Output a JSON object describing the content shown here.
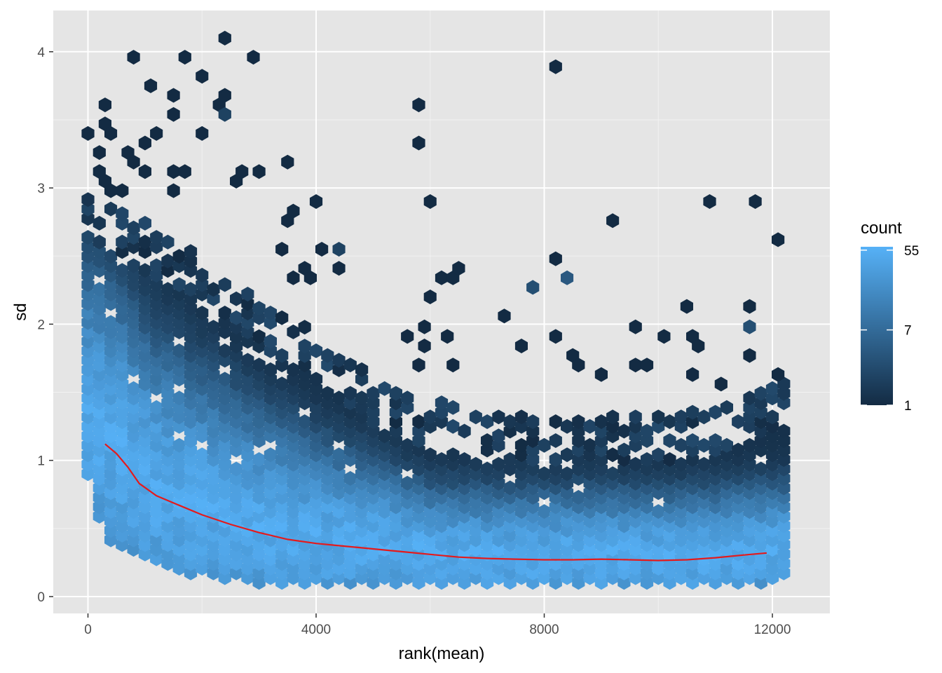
{
  "chart_data": {
    "type": "hexbin",
    "xlabel": "rank(mean)",
    "ylabel": "sd",
    "xlim": [
      -750,
      12750
    ],
    "ylim": [
      -0.13,
      4.3
    ],
    "x_ticks": [
      0,
      4000,
      8000,
      12000
    ],
    "x_tick_labels": [
      "0",
      "4000",
      "8000",
      "12000"
    ],
    "y_ticks": [
      0,
      1,
      2,
      3,
      4
    ],
    "y_tick_labels": [
      "0",
      "1",
      "2",
      "3",
      "4"
    ],
    "grid": true,
    "background": "#e5e5e5",
    "legend": {
      "title": "count",
      "placement": "right",
      "scale": "log",
      "labels": [
        "55",
        "7",
        "1"
      ],
      "values": [
        55,
        7,
        1
      ],
      "color_low": "#132b43",
      "color_high": "#56b1f7"
    },
    "hex_bins": [
      [
        0,
        3.4,
        1
      ],
      [
        200,
        3.26,
        1
      ],
      [
        300,
        3.61,
        1
      ],
      [
        300,
        3.47,
        1
      ],
      [
        400,
        3.4,
        1
      ],
      [
        800,
        3.96,
        1
      ],
      [
        700,
        3.26,
        1
      ],
      [
        1100,
        3.75,
        1
      ],
      [
        1000,
        3.33,
        1
      ],
      [
        1200,
        3.4,
        1
      ],
      [
        1500,
        3.68,
        1
      ],
      [
        1500,
        3.54,
        1
      ],
      [
        1700,
        3.96,
        1
      ],
      [
        2000,
        3.82,
        1
      ],
      [
        2000,
        3.4,
        1
      ],
      [
        2400,
        4.1,
        1
      ],
      [
        2300,
        3.61,
        1
      ],
      [
        2400,
        3.68,
        1
      ],
      [
        2400,
        3.54,
        2
      ],
      [
        2900,
        3.96,
        1
      ],
      [
        800,
        3.19,
        1
      ],
      [
        1000,
        3.12,
        1
      ],
      [
        1500,
        3.12,
        1
      ],
      [
        1700,
        3.12,
        1
      ],
      [
        2600,
        3.05,
        1
      ],
      [
        2700,
        3.12,
        1
      ],
      [
        3000,
        3.12,
        1
      ],
      [
        3500,
        3.19,
        1
      ],
      [
        200,
        3.12,
        1
      ],
      [
        300,
        3.05,
        1
      ],
      [
        400,
        2.98,
        1
      ],
      [
        600,
        2.98,
        1
      ],
      [
        1500,
        2.98,
        1
      ],
      [
        5800,
        3.61,
        1
      ],
      [
        5800,
        3.33,
        1
      ],
      [
        8200,
        3.89,
        1
      ],
      [
        3500,
        2.76,
        1
      ],
      [
        3600,
        2.83,
        1
      ],
      [
        4000,
        2.9,
        1
      ],
      [
        6000,
        2.9,
        1
      ],
      [
        9200,
        2.76,
        1
      ],
      [
        10900,
        2.9,
        1
      ],
      [
        11700,
        2.9,
        1
      ],
      [
        12100,
        2.62,
        1
      ],
      [
        4100,
        2.55,
        1
      ],
      [
        4400,
        2.55,
        2
      ],
      [
        4400,
        2.41,
        1
      ],
      [
        3400,
        2.55,
        1
      ],
      [
        3800,
        2.41,
        1
      ],
      [
        3600,
        2.34,
        1
      ],
      [
        3900,
        2.34,
        1
      ],
      [
        6200,
        2.34,
        1
      ],
      [
        6400,
        2.34,
        1
      ],
      [
        6500,
        2.41,
        1
      ],
      [
        6000,
        2.2,
        1
      ],
      [
        7800,
        2.27,
        3
      ],
      [
        8200,
        2.48,
        1
      ],
      [
        8400,
        2.34,
        4
      ],
      [
        7300,
        2.06,
        1
      ],
      [
        10500,
        2.13,
        1
      ],
      [
        11600,
        2.13,
        1
      ],
      [
        11600,
        1.98,
        3
      ],
      [
        9600,
        1.98,
        1
      ],
      [
        10100,
        1.91,
        1
      ],
      [
        10600,
        1.91,
        1
      ],
      [
        10700,
        1.84,
        1
      ],
      [
        5600,
        1.91,
        1
      ],
      [
        5900,
        1.98,
        1
      ],
      [
        6300,
        1.91,
        1
      ],
      [
        5900,
        1.84,
        1
      ],
      [
        7600,
        1.84,
        1
      ],
      [
        8200,
        1.91,
        1
      ],
      [
        8500,
        1.77,
        1
      ],
      [
        8600,
        1.7,
        1
      ],
      [
        5800,
        1.7,
        1
      ],
      [
        6400,
        1.7,
        1
      ],
      [
        9000,
        1.63,
        1
      ],
      [
        9600,
        1.7,
        1
      ],
      [
        9800,
        1.7,
        1
      ],
      [
        10600,
        1.63,
        1
      ],
      [
        11100,
        1.56,
        1
      ],
      [
        11600,
        1.77,
        1
      ],
      [
        12100,
        1.63,
        1
      ]
    ],
    "hex_density": {
      "columns_x_start": 0,
      "columns_x_step": 200,
      "columns_x_end": 12200,
      "y_step": 0.0694,
      "description": "dense band of bins between sd 0.1 and the upper envelope, brightest near the trend curve"
    },
    "upper_envelope": {
      "x": [
        0,
        500,
        1000,
        1500,
        2000,
        2500,
        3000,
        3500,
        4000,
        4500,
        5000,
        5500,
        6000,
        6500,
        7000,
        7500,
        8000,
        8500,
        9000,
        9500,
        10000,
        10500,
        11000,
        11500,
        12100
      ],
      "y": [
        2.95,
        2.85,
        2.75,
        2.6,
        2.5,
        2.35,
        2.2,
        2.05,
        1.95,
        1.8,
        1.6,
        1.5,
        1.45,
        1.4,
        1.35,
        1.35,
        1.3,
        1.3,
        1.3,
        1.35,
        1.35,
        1.35,
        1.4,
        1.45,
        1.6
      ]
    },
    "lower_envelope": {
      "x": [
        0,
        300,
        800,
        1500,
        2000,
        3000,
        4000,
        5000,
        6000,
        7000,
        8000,
        9000,
        10000,
        11000,
        12000,
        12300
      ],
      "y": [
        0.9,
        0.42,
        0.3,
        0.2,
        0.14,
        0.1,
        0.08,
        0.07,
        0.07,
        0.07,
        0.07,
        0.07,
        0.07,
        0.07,
        0.07,
        0.2
      ]
    },
    "trend_line": {
      "name": "",
      "color": "#e41a1c",
      "x": [
        300,
        500,
        700,
        900,
        1200,
        1600,
        2000,
        2500,
        3000,
        3500,
        4000,
        4500,
        5000,
        5500,
        6000,
        6500,
        7000,
        7500,
        8000,
        8500,
        9000,
        9500,
        10000,
        10500,
        11000,
        11500,
        11900
      ],
      "y": [
        1.12,
        1.05,
        0.95,
        0.83,
        0.74,
        0.67,
        0.6,
        0.53,
        0.47,
        0.42,
        0.39,
        0.37,
        0.35,
        0.33,
        0.31,
        0.29,
        0.28,
        0.275,
        0.27,
        0.27,
        0.275,
        0.27,
        0.265,
        0.27,
        0.285,
        0.305,
        0.32
      ]
    }
  }
}
